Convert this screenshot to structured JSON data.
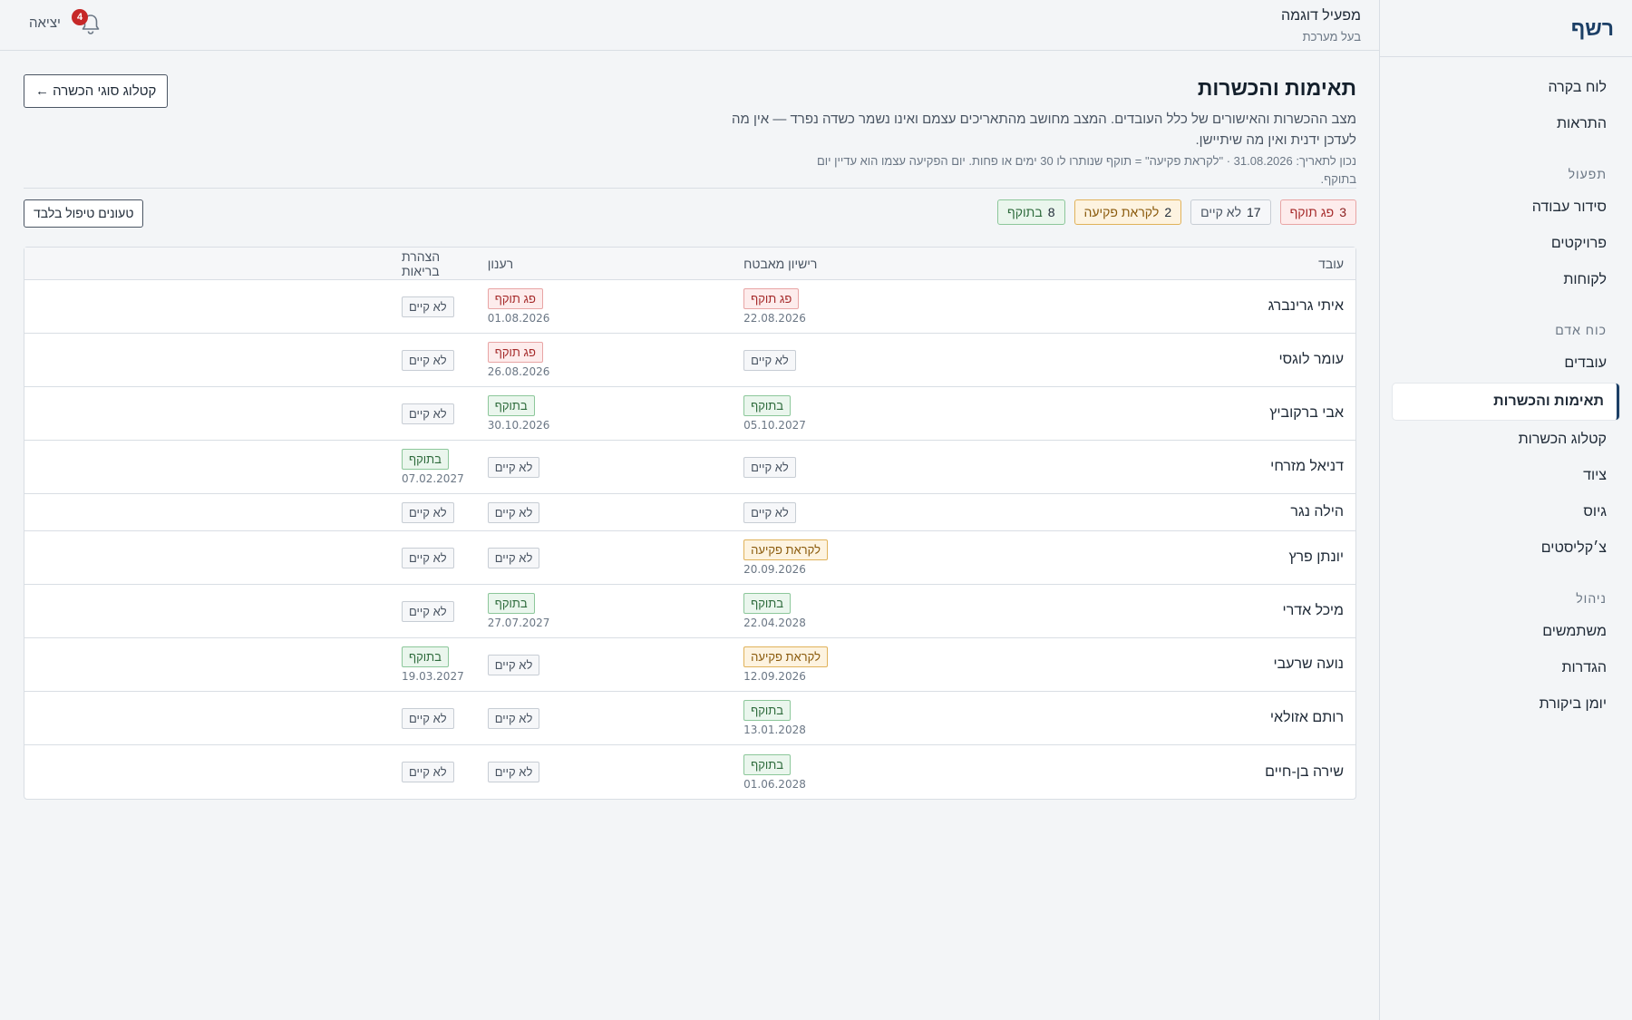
{
  "brand": "רשף",
  "sidebar": {
    "items_top": [
      {
        "label": "לוח בקרה",
        "name": "sidebar-item-dashboard"
      },
      {
        "label": "התראות",
        "name": "sidebar-item-alerts"
      }
    ],
    "sections": [
      {
        "title": "תפעול",
        "items": [
          {
            "label": "סידור עבודה",
            "name": "sidebar-item-schedule"
          },
          {
            "label": "פרויקטים",
            "name": "sidebar-item-projects"
          },
          {
            "label": "לקוחות",
            "name": "sidebar-item-customers"
          }
        ]
      },
      {
        "title": "כוח אדם",
        "items": [
          {
            "label": "עובדים",
            "name": "sidebar-item-employees"
          },
          {
            "label": "תאימות והכשרות",
            "name": "sidebar-item-compliance",
            "active": true
          },
          {
            "label": "קטלוג הכשרות",
            "name": "sidebar-item-training-catalog"
          },
          {
            "label": "ציוד",
            "name": "sidebar-item-equipment"
          },
          {
            "label": "גיוס",
            "name": "sidebar-item-recruitment"
          },
          {
            "label": "צ׳קליסטים",
            "name": "sidebar-item-checklists"
          }
        ]
      },
      {
        "title": "ניהול",
        "items": [
          {
            "label": "משתמשים",
            "name": "sidebar-item-users"
          },
          {
            "label": "הגדרות",
            "name": "sidebar-item-settings"
          },
          {
            "label": "יומן ביקורת",
            "name": "sidebar-item-audit-log"
          }
        ]
      }
    ]
  },
  "topbar": {
    "user_name": "מפעיל דוגמה",
    "user_role": "בעל מערכת",
    "notifications_count": "4",
    "logout_label": "יציאה"
  },
  "page": {
    "title": "תאימות והכשרות",
    "description": "מצב ההכשרות והאישורים של כלל העובדים. המצב מחושב מהתאריכים עצמם ואינו נשמר כשדה נפרד — אין מה לעדכן ידנית ואין מה שיתיישן.",
    "note": "נכון לתאריך: 31.08.2026 · \"לקראת פקיעה\" = תוקף שנותרו לו 30 ימים או פחות. יום הפקיעה עצמו הוא עדיין יום בתוקף.",
    "catalog_button": "קטלוג סוגי הכשרה ←",
    "attention_button": "טעונים טיפול בלבד"
  },
  "summary_chips": [
    {
      "count": "3",
      "label": "פג תוקף",
      "kind": "expired"
    },
    {
      "count": "17",
      "label": "לא קיים",
      "kind": "missing"
    },
    {
      "count": "2",
      "label": "לקראת פקיעה",
      "kind": "soon"
    },
    {
      "count": "8",
      "label": "בתוקף",
      "kind": "valid"
    }
  ],
  "table": {
    "headers": [
      "עובד",
      "רישיון מאבטח",
      "רענון",
      "הצהרת בריאות"
    ],
    "status_labels": {
      "expired": "פג תוקף",
      "missing": "לא קיים",
      "soon": "לקראת פקיעה",
      "valid": "בתוקף"
    },
    "rows": [
      {
        "name": "איתי גרינברג",
        "cells": [
          {
            "status": "expired",
            "date": "22.08.2026"
          },
          {
            "status": "expired",
            "date": "01.08.2026"
          },
          {
            "status": "missing",
            "date": ""
          }
        ]
      },
      {
        "name": "עומר לוגסי",
        "cells": [
          {
            "status": "missing",
            "date": ""
          },
          {
            "status": "expired",
            "date": "26.08.2026"
          },
          {
            "status": "missing",
            "date": ""
          }
        ]
      },
      {
        "name": "אבי ברקוביץ",
        "cells": [
          {
            "status": "valid",
            "date": "05.10.2027"
          },
          {
            "status": "valid",
            "date": "30.10.2026"
          },
          {
            "status": "missing",
            "date": ""
          }
        ]
      },
      {
        "name": "דניאל מזרחי",
        "cells": [
          {
            "status": "missing",
            "date": ""
          },
          {
            "status": "missing",
            "date": ""
          },
          {
            "status": "valid",
            "date": "07.02.2027"
          }
        ]
      },
      {
        "name": "הילה נגר",
        "cells": [
          {
            "status": "missing",
            "date": ""
          },
          {
            "status": "missing",
            "date": ""
          },
          {
            "status": "missing",
            "date": ""
          }
        ]
      },
      {
        "name": "יונתן פרץ",
        "cells": [
          {
            "status": "soon",
            "date": "20.09.2026"
          },
          {
            "status": "missing",
            "date": ""
          },
          {
            "status": "missing",
            "date": ""
          }
        ]
      },
      {
        "name": "מיכל אדרי",
        "cells": [
          {
            "status": "valid",
            "date": "22.04.2028"
          },
          {
            "status": "valid",
            "date": "27.07.2027"
          },
          {
            "status": "missing",
            "date": ""
          }
        ]
      },
      {
        "name": "נועה שרעבי",
        "cells": [
          {
            "status": "soon",
            "date": "12.09.2026"
          },
          {
            "status": "missing",
            "date": ""
          },
          {
            "status": "valid",
            "date": "19.03.2027"
          }
        ]
      },
      {
        "name": "רותם אזולאי",
        "cells": [
          {
            "status": "valid",
            "date": "13.01.2028"
          },
          {
            "status": "missing",
            "date": ""
          },
          {
            "status": "missing",
            "date": ""
          }
        ]
      },
      {
        "name": "שירה בן-חיים",
        "cells": [
          {
            "status": "valid",
            "date": "01.06.2028"
          },
          {
            "status": "missing",
            "date": ""
          },
          {
            "status": "missing",
            "date": ""
          }
        ]
      }
    ]
  },
  "colors": {
    "brand": "#1c3f66",
    "expired": "#a52a2a",
    "soon": "#8a5a0c",
    "valid": "#2e6b3c",
    "badge_notification": "#c62828"
  }
}
